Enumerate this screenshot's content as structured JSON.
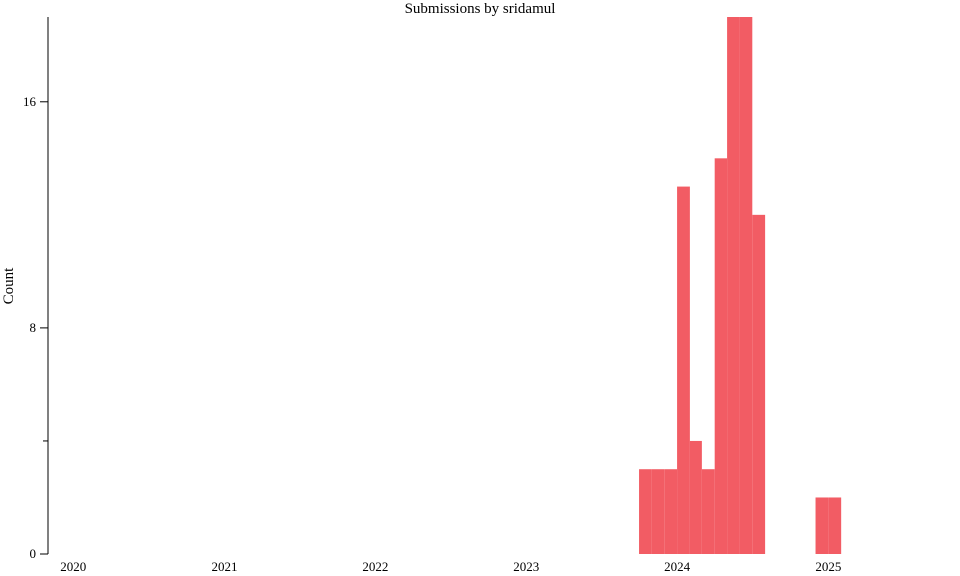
{
  "chart_data": {
    "type": "bar",
    "title": "Submissions by sridamul",
    "xlabel": "",
    "ylabel": "Count",
    "x_ticks": [
      "2020",
      "2021",
      "2022",
      "2023",
      "2024",
      "2025"
    ],
    "y_ticks": [
      0,
      8,
      16
    ],
    "y_minor_ticks": [
      4
    ],
    "xlim": [
      "2019-11-01",
      "2025-11-01"
    ],
    "ylim": [
      0,
      19
    ],
    "bar_color": "#f25c64",
    "grid": false,
    "bins": [
      {
        "start": "2023-10-01",
        "end": "2023-11-01",
        "value": 3
      },
      {
        "start": "2023-11-01",
        "end": "2023-12-01",
        "value": 3
      },
      {
        "start": "2023-12-01",
        "end": "2024-01-01",
        "value": 3
      },
      {
        "start": "2024-01-01",
        "end": "2024-02-01",
        "value": 13
      },
      {
        "start": "2024-02-01",
        "end": "2024-03-01",
        "value": 4
      },
      {
        "start": "2024-03-01",
        "end": "2024-04-01",
        "value": 3
      },
      {
        "start": "2024-04-01",
        "end": "2024-05-01",
        "value": 14
      },
      {
        "start": "2024-05-01",
        "end": "2024-06-01",
        "value": 19
      },
      {
        "start": "2024-06-01",
        "end": "2024-07-01",
        "value": 19
      },
      {
        "start": "2024-07-01",
        "end": "2024-08-01",
        "value": 12
      },
      {
        "start": "2024-12-01",
        "end": "2025-01-01",
        "value": 2
      },
      {
        "start": "2025-01-01",
        "end": "2025-02-01",
        "value": 2
      }
    ]
  }
}
